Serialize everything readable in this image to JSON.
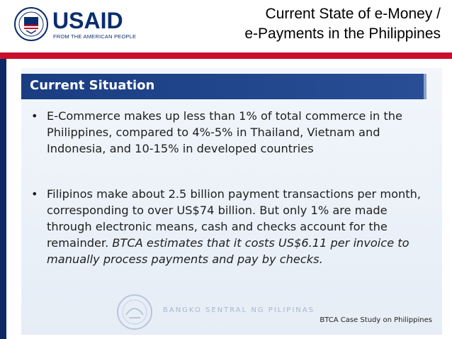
{
  "header": {
    "logo_text": "USAID",
    "logo_tagline": "FROM THE AMERICAN PEOPLE",
    "title_line1": "Current State of e-Money /",
    "title_line2": "e-Payments in the Philippines"
  },
  "panel": {
    "heading": "Current Situation",
    "bullets": [
      {
        "text": "E-Commerce makes up less than 1% of total commerce in the Philippines, compared to 4%-5% in Thailand, Vietnam and Indonesia, and 10-15% in developed countries"
      },
      {
        "text": "Filipinos make about 2.5 billion payment transactions per month, corresponding to over US$74 billion.  But only 1% are made through electronic means, cash and checks account for the remainder.",
        "italic": "BTCA estimates that it costs US$6.11 per invoice to manually process payments and pay by checks."
      }
    ],
    "watermark_text": "BANGKO SENTRAL NG PILIPINAS",
    "source": "BTCA Case Study on Philippines"
  },
  "colors": {
    "red_bar": "#c8102e",
    "navy": "#0d2a67",
    "header_blue": "#1a3d82"
  }
}
